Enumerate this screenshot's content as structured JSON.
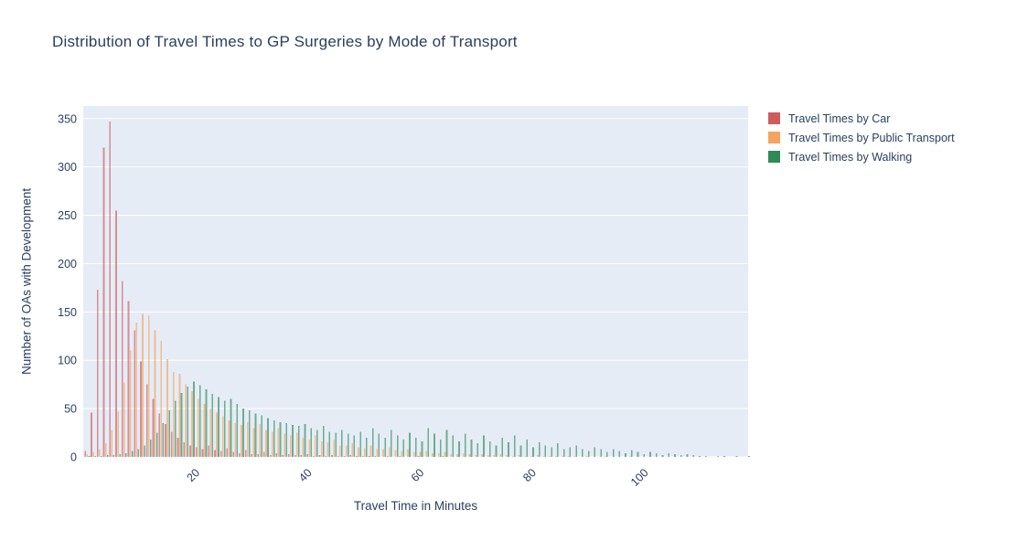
{
  "title": "Distribution of Travel Times to GP Surgeries by Mode of Transport",
  "xaxis": {
    "title": "Travel Time in Minutes",
    "ticks": [
      20,
      40,
      60,
      80,
      100
    ]
  },
  "yaxis": {
    "title": "Number of OAs with Development",
    "ticks": [
      0,
      50,
      100,
      150,
      200,
      250,
      300,
      350
    ]
  },
  "legend": {
    "items": [
      {
        "label": "Travel Times by Car",
        "color": "#CD5C5C"
      },
      {
        "label": "Travel Times by Public Transport",
        "color": "#F4A460"
      },
      {
        "label": "Travel Times by Walking",
        "color": "#2E8B57"
      }
    ]
  },
  "colors": {
    "plot_background": "#E5ECF6",
    "gridline": "#FFFFFF",
    "text": "#2A3F5F",
    "car": "#CD5C5C",
    "public_transport": "#F4A460",
    "walking": "#2E8B57"
  },
  "chart_data": {
    "type": "bar",
    "mode": "grouped-histogram",
    "title": "Distribution of Travel Times to GP Surgeries by Mode of Transport",
    "xlabel": "Travel Time in Minutes",
    "ylabel": "Number of OAs with Development",
    "bin_start_min": 0,
    "bin_width_min": 1.1,
    "xlim": [
      0,
      118.6
    ],
    "ylim": [
      0,
      363
    ],
    "grid": "horizontal-only",
    "legend_position": "right-top",
    "bar_opacity": 0.65,
    "series": [
      {
        "name": "Travel Times by Car",
        "color": "#CD5C5C",
        "values": [
          6,
          46,
          173,
          320,
          347,
          255,
          182,
          161,
          131,
          99,
          75,
          60,
          45,
          34,
          26,
          20,
          15,
          12,
          10,
          8,
          12,
          7,
          6,
          9,
          5,
          4,
          7,
          3,
          3,
          5,
          2,
          4,
          2,
          3,
          2,
          2,
          3,
          1,
          2,
          1,
          2,
          1,
          1,
          2,
          1,
          1,
          1,
          1,
          0,
          1,
          0,
          1,
          0,
          0,
          1,
          0,
          0,
          0,
          1,
          0,
          0,
          0,
          0,
          0,
          0,
          0,
          0,
          0,
          0,
          0,
          0,
          0,
          0,
          0,
          0,
          0,
          0,
          0,
          0,
          0,
          0,
          0,
          0,
          0,
          0,
          0,
          0,
          0,
          0,
          0,
          0,
          0,
          0,
          0,
          0,
          0,
          0,
          0,
          0,
          0,
          0,
          0,
          0,
          0,
          0,
          0,
          0,
          0
        ]
      },
      {
        "name": "Travel Times by Public Transport",
        "color": "#F4A460",
        "values": [
          3,
          5,
          8,
          14,
          28,
          47,
          77,
          110,
          139,
          148,
          146,
          131,
          120,
          101,
          88,
          86,
          75,
          68,
          60,
          55,
          50,
          46,
          42,
          38,
          35,
          33,
          36,
          30,
          34,
          28,
          26,
          30,
          24,
          22,
          25,
          20,
          18,
          22,
          16,
          15,
          18,
          12,
          12,
          14,
          10,
          9,
          12,
          8,
          8,
          10,
          7,
          6,
          8,
          5,
          5,
          6,
          4,
          4,
          5,
          3,
          3,
          4,
          3,
          2,
          3,
          2,
          2,
          3,
          2,
          1,
          2,
          1,
          1,
          2,
          1,
          1,
          1,
          1,
          1,
          1,
          0,
          1,
          0,
          0,
          1,
          0,
          0,
          0,
          1,
          0,
          0,
          0,
          0,
          0,
          0,
          0,
          0,
          0,
          0,
          0,
          0,
          0,
          0,
          0,
          0,
          0,
          0,
          0
        ]
      },
      {
        "name": "Travel Times by Walking",
        "color": "#2E8B57",
        "values": [
          1,
          1,
          1,
          2,
          2,
          3,
          4,
          6,
          8,
          12,
          18,
          25,
          35,
          48,
          58,
          66,
          73,
          78,
          74,
          70,
          65,
          62,
          58,
          60,
          55,
          50,
          48,
          45,
          43,
          40,
          38,
          36,
          35,
          33,
          32,
          34,
          30,
          28,
          32,
          26,
          25,
          28,
          24,
          22,
          26,
          20,
          30,
          24,
          20,
          28,
          22,
          18,
          25,
          20,
          16,
          30,
          24,
          18,
          28,
          22,
          16,
          24,
          18,
          14,
          22,
          16,
          12,
          20,
          15,
          22,
          12,
          18,
          10,
          15,
          12,
          10,
          14,
          8,
          10,
          12,
          8,
          6,
          10,
          8,
          5,
          8,
          6,
          4,
          7,
          5,
          3,
          5,
          4,
          2,
          4,
          3,
          2,
          3,
          2,
          1,
          1,
          0,
          1,
          1,
          0,
          1,
          0,
          1
        ]
      }
    ]
  }
}
